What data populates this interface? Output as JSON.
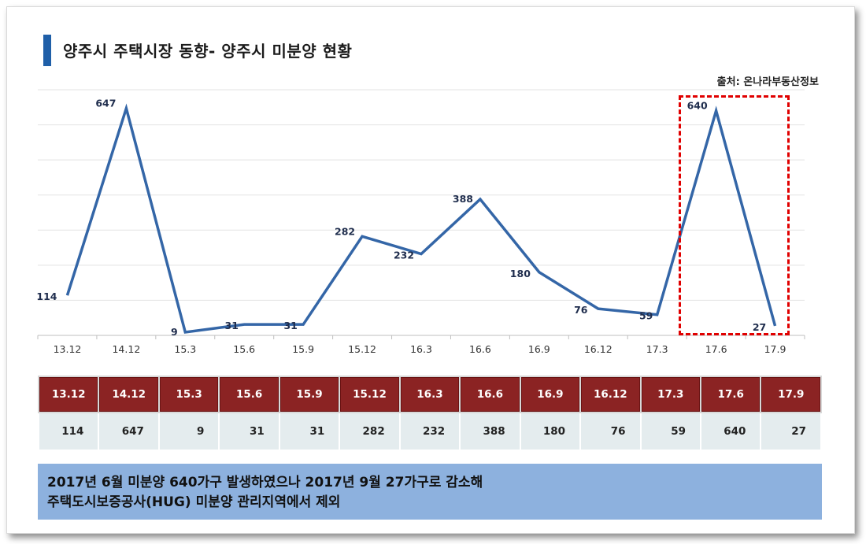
{
  "title": "양주시 주택시장 동향- 양주시 미분양 현황",
  "source": "출처: 온나라부동산정보",
  "chart_data": {
    "type": "line",
    "categories": [
      "13.12",
      "14.12",
      "15.3",
      "15.6",
      "15.9",
      "15.12",
      "16.3",
      "16.6",
      "16.9",
      "16.12",
      "17.3",
      "17.6",
      "17.9"
    ],
    "values": [
      114,
      647,
      9,
      31,
      31,
      282,
      232,
      388,
      180,
      76,
      59,
      640,
      27
    ],
    "ylim": [
      0,
      700
    ],
    "grid": true,
    "legend": "none",
    "line_color": "#3466a7",
    "highlight_categories": [
      "17.6",
      "17.9"
    ]
  },
  "table": {
    "headers": [
      "13.12",
      "14.12",
      "15.3",
      "15.6",
      "15.9",
      "15.12",
      "16.3",
      "16.6",
      "16.9",
      "16.12",
      "17.3",
      "17.6",
      "17.9"
    ],
    "values": [
      "114",
      "647",
      "9",
      "31",
      "31",
      "282",
      "232",
      "388",
      "180",
      "76",
      "59",
      "640",
      "27"
    ]
  },
  "note": {
    "line1": "2017년 6월 미분양 640가구 발생하였으나 2017년 9월 27가구로 감소해",
    "line2": "주택도시보증공사(HUG) 미분양 관리지역에서 제외"
  },
  "colors": {
    "title_bar": "#1f5fa8",
    "table_header": "#8b2323",
    "table_values": "#e4ecee",
    "note_bg": "#8db1de",
    "highlight": "#e00000"
  }
}
